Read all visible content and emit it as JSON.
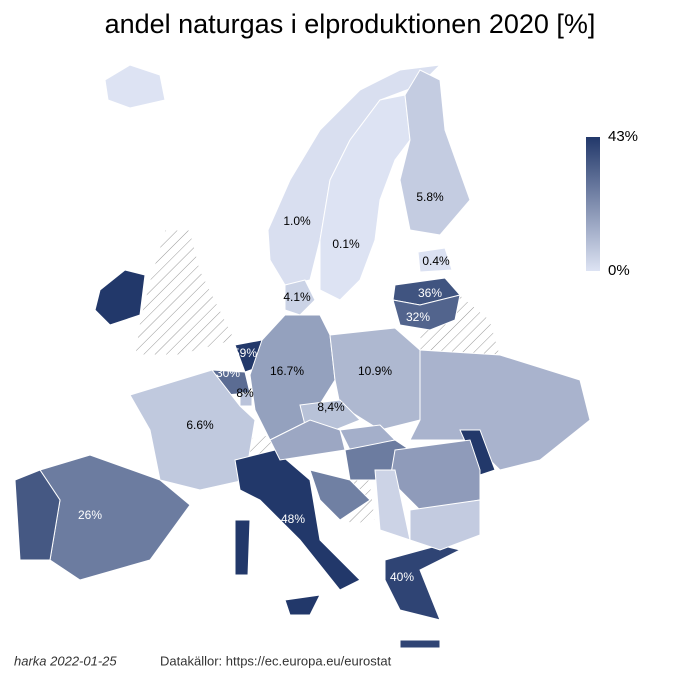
{
  "chart_data": {
    "type": "choropleth",
    "title": "andel naturgas i elproduktionen 2020 [%]",
    "values": [
      1.0,
      0.1,
      5.8,
      0.4,
      4.1,
      36,
      32,
      59,
      30,
      8,
      16.7,
      10.9,
      8.4,
      6.6,
      26,
      48,
      40,
      0,
      50,
      35,
      12,
      15,
      13,
      26,
      45,
      18,
      6,
      4,
      25
    ],
    "value_labels": [
      "1.0%",
      "0.1%",
      "5.8%",
      "0.4%",
      "4.1%",
      "36%",
      "32%",
      "59%",
      "30%",
      "8%",
      "16.7%",
      "10.9%",
      "8,4%",
      "6.6%",
      "26%",
      "48%",
      "40%",
      null,
      null,
      null,
      null,
      null,
      null,
      null,
      null,
      null,
      null,
      null,
      null
    ],
    "colors": [
      "#dde3f3",
      "#22386a"
    ],
    "clim": [
      0,
      43
    ],
    "cticks": [
      {
        "value": 43,
        "label": "43%"
      },
      {
        "value": 0,
        "label": "0%"
      }
    ],
    "author": "harka 2022-01-25",
    "source": "Datakällor: https://ec.europa.eu/eurostat"
  }
}
